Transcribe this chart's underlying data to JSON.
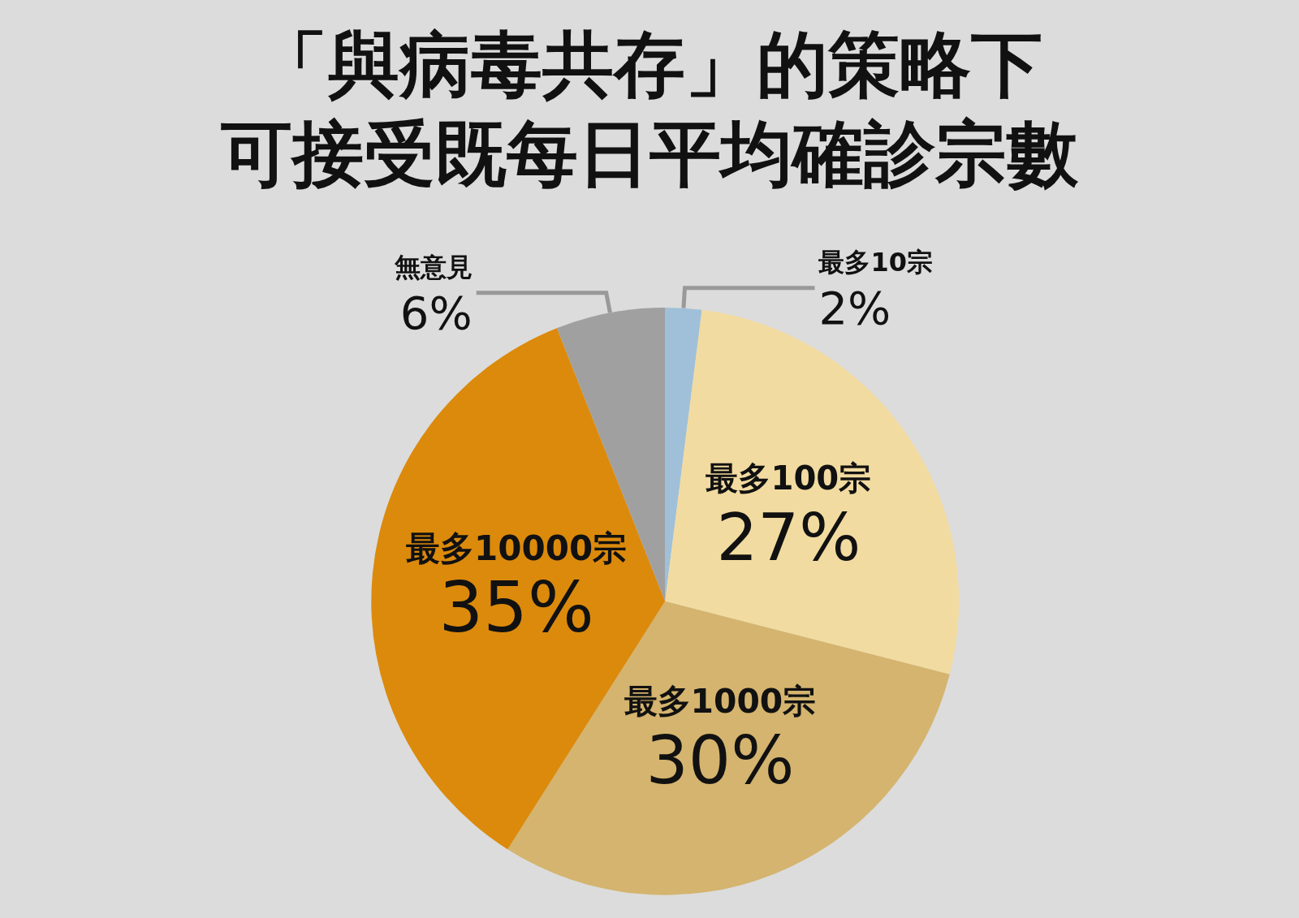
{
  "chart_data": {
    "type": "pie",
    "title": "「與病毒共存」的策略下",
    "subtitle": "可接受既每日平均確診宗數",
    "categories": [
      "最多10宗",
      "最多100宗",
      "最多1000宗",
      "最多10000宗",
      "無意見"
    ],
    "values": [
      2,
      27,
      30,
      35,
      6
    ],
    "value_labels": [
      "2%",
      "27%",
      "30%",
      "35%",
      "6%"
    ],
    "colors": [
      "#9fc0d8",
      "#f2dba0",
      "#d4b46e",
      "#dc8a0c",
      "#a0a0a0"
    ],
    "legend": false
  }
}
